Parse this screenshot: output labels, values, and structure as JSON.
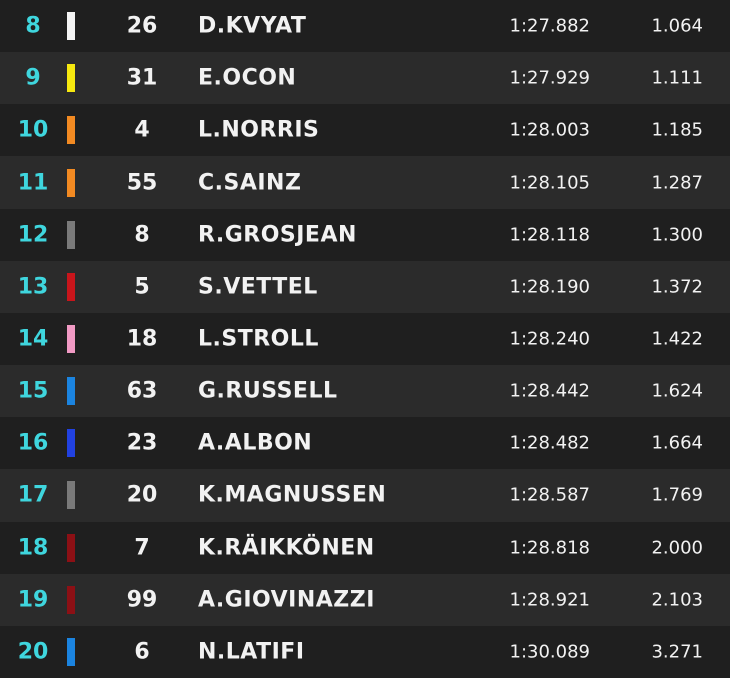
{
  "table": {
    "rows": [
      {
        "position": "8",
        "color": "#f4f4f4",
        "number": "26",
        "driver": "D.KVYAT",
        "time": "1:27.882",
        "gap": "1.064"
      },
      {
        "position": "9",
        "color": "#f6e80f",
        "number": "31",
        "driver": "E.OCON",
        "time": "1:27.929",
        "gap": "1.111"
      },
      {
        "position": "10",
        "color": "#f28a22",
        "number": "4",
        "driver": "L.NORRIS",
        "time": "1:28.003",
        "gap": "1.185"
      },
      {
        "position": "11",
        "color": "#f28a22",
        "number": "55",
        "driver": "C.SAINZ",
        "time": "1:28.105",
        "gap": "1.287"
      },
      {
        "position": "12",
        "color": "#7a7a7a",
        "number": "8",
        "driver": "R.GROSJEAN",
        "time": "1:28.118",
        "gap": "1.300"
      },
      {
        "position": "13",
        "color": "#c8151b",
        "number": "5",
        "driver": "S.VETTEL",
        "time": "1:28.190",
        "gap": "1.372"
      },
      {
        "position": "14",
        "color": "#f19ac4",
        "number": "18",
        "driver": "L.STROLL",
        "time": "1:28.240",
        "gap": "1.422"
      },
      {
        "position": "15",
        "color": "#1b84e0",
        "number": "63",
        "driver": "G.RUSSELL",
        "time": "1:28.442",
        "gap": "1.624"
      },
      {
        "position": "16",
        "color": "#2141e0",
        "number": "23",
        "driver": "A.ALBON",
        "time": "1:28.482",
        "gap": "1.664"
      },
      {
        "position": "17",
        "color": "#7a7a7a",
        "number": "20",
        "driver": "K.MAGNUSSEN",
        "time": "1:28.587",
        "gap": "1.769"
      },
      {
        "position": "18",
        "color": "#8c1015",
        "number": "7",
        "driver": "K.RÄIKKÖNEN",
        "time": "1:28.818",
        "gap": "2.000"
      },
      {
        "position": "19",
        "color": "#8c1015",
        "number": "99",
        "driver": "A.GIOVINAZZI",
        "time": "1:28.921",
        "gap": "2.103"
      },
      {
        "position": "20",
        "color": "#1b84e0",
        "number": "6",
        "driver": "N.LATIFI",
        "time": "1:30.089",
        "gap": "3.271"
      }
    ]
  }
}
